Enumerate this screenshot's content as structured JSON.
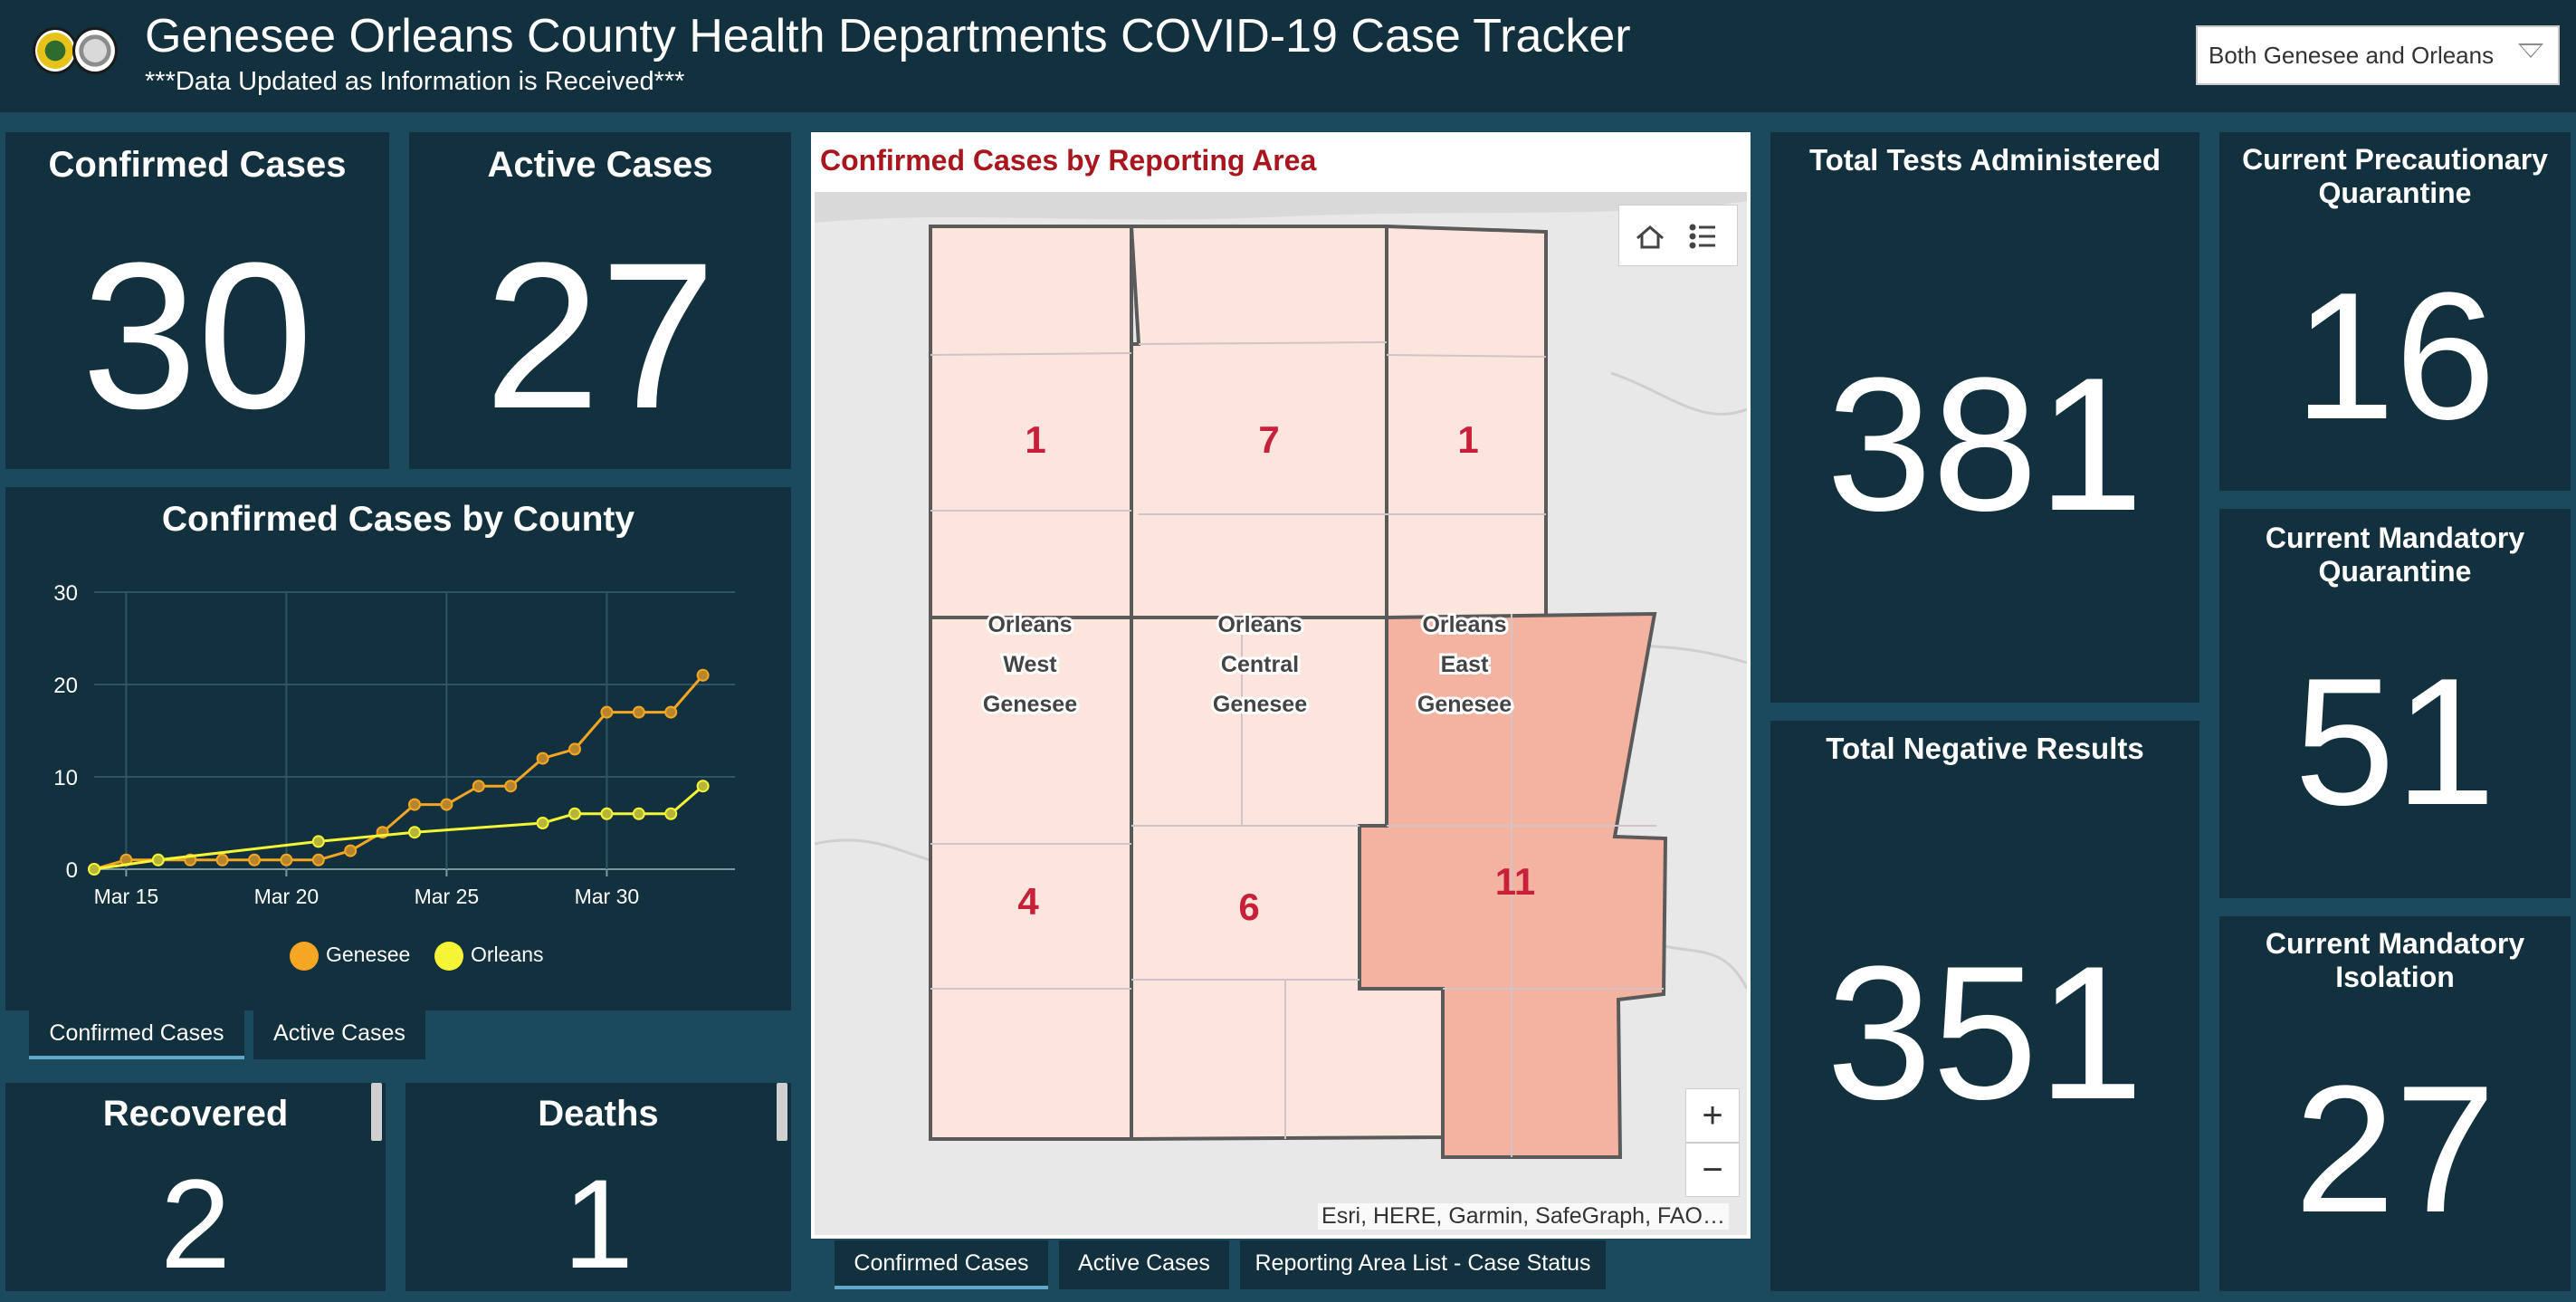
{
  "header": {
    "title": "Genesee Orleans County Health Departments COVID-19 Case Tracker",
    "subtitle": "***Data Updated as Information is Received***",
    "county_filter": "Both Genesee and Orleans"
  },
  "kpis": {
    "confirmed_title": "Confirmed Cases",
    "confirmed_value": "30",
    "active_title": "Active Cases",
    "active_value": "27",
    "recovered_title": "Recovered",
    "recovered_value": "2",
    "deaths_title": "Deaths",
    "deaths_value": "1",
    "tests_title": "Total Tests Administered",
    "tests_value": "381",
    "negative_title": "Total Negative Results",
    "negative_value": "351",
    "prec_quarantine_title": "Current Precautionary Quarantine",
    "prec_quarantine_value": "16",
    "mand_quarantine_title": "Current Mandatory Quarantine",
    "mand_quarantine_value": "51",
    "mand_isolation_title": "Current Mandatory Isolation",
    "mand_isolation_value": "27"
  },
  "chart_panel": {
    "title": "Confirmed Cases by County",
    "tabs": [
      "Confirmed Cases",
      "Active Cases"
    ]
  },
  "chart_data": {
    "type": "line",
    "title": "Confirmed Cases by County",
    "xlabel": "",
    "ylabel": "",
    "x": [
      "Mar 14",
      "Mar 15",
      "Mar 16",
      "Mar 17",
      "Mar 18",
      "Mar 19",
      "Mar 20",
      "Mar 21",
      "Mar 22",
      "Mar 23",
      "Mar 24",
      "Mar 25",
      "Mar 26",
      "Mar 27",
      "Mar 28",
      "Mar 29",
      "Mar 30",
      "Mar 31",
      "Apr 1",
      "Apr 2",
      "Apr 3"
    ],
    "x_ticks": [
      "Mar 15",
      "Mar 20",
      "Mar 25",
      "Mar 30"
    ],
    "y_ticks": [
      0,
      10,
      20,
      30
    ],
    "ylim": [
      0,
      30
    ],
    "grid": true,
    "legend_position": "bottom",
    "series": [
      {
        "name": "Genesee",
        "color": "#f5a623",
        "values": [
          0,
          1,
          1,
          1,
          1,
          1,
          1,
          1,
          2,
          4,
          7,
          7,
          9,
          9,
          12,
          13,
          17,
          17,
          17,
          21,
          null
        ]
      },
      {
        "name": "Orleans",
        "color": "#f5f536",
        "values": [
          0,
          null,
          1,
          null,
          null,
          null,
          null,
          3,
          null,
          null,
          4,
          null,
          null,
          null,
          5,
          6,
          6,
          6,
          6,
          9,
          null
        ]
      }
    ]
  },
  "map_panel": {
    "title": "Confirmed Cases by Reporting Area",
    "attribution": "Esri, HERE, Garmin, SafeGraph, FAO…",
    "zoom_in": "+",
    "zoom_out": "−",
    "regions": [
      {
        "name": "Orleans West",
        "count": "1"
      },
      {
        "name": "Orleans Central",
        "count": "7"
      },
      {
        "name": "Orleans East",
        "count": "1"
      },
      {
        "name": "Genesee West",
        "count": "4"
      },
      {
        "name": "Genesee Central",
        "count": "6"
      },
      {
        "name": "Genesee East",
        "count": "11"
      }
    ],
    "labels": {
      "orleans": "Orleans",
      "genesee": "Genesee",
      "west": "West",
      "central": "Central",
      "east": "East"
    },
    "tabs": [
      "Confirmed Cases",
      "Active Cases",
      "Reporting Area List - Case Status"
    ]
  },
  "colors": {
    "background": "#1a4a5c",
    "panel": "#12303e",
    "light_fill": "#fbe5dd",
    "strong_fill": "#f3b3a0",
    "count_text": "#c8203a",
    "map_title": "#a8161e"
  }
}
